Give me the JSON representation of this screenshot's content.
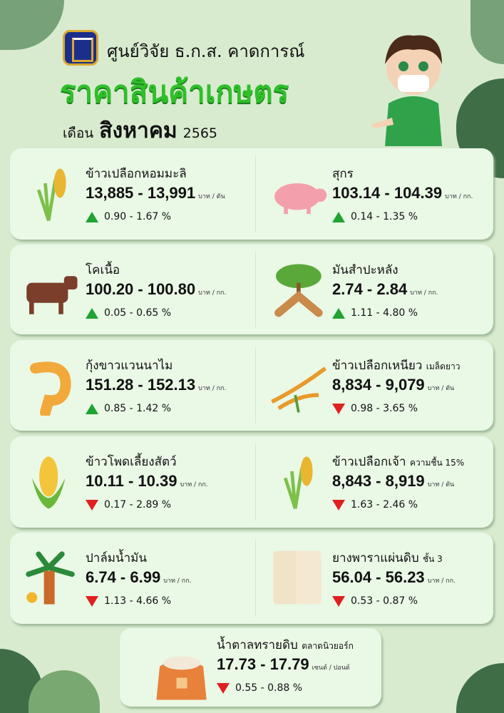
{
  "header": {
    "org": "ศูนย์วิจัย ธ.ก.ส. คาดการณ์",
    "title": "ราคาสินค้าเกษตร",
    "month_label": "เดือน",
    "month": "สิงหาคม",
    "year": "2565"
  },
  "colors": {
    "up": "#1fa332",
    "down": "#e02020",
    "title": "#2fbf2a",
    "background": "#d8ebcf",
    "card": "#eaf8e6"
  },
  "items": [
    {
      "name": "ข้าวเปลือกหอมมะลิ",
      "note": "",
      "price": "13,885 - 13,991",
      "unit": "บาท / ตัน",
      "change": "0.90 - 1.67 %",
      "direction": "up",
      "icon": "rice-plant-icon"
    },
    {
      "name": "สุกร",
      "note": "",
      "price": "103.14 - 104.39",
      "unit": "บาท / กก.",
      "change": "0.14 - 1.35 %",
      "direction": "up",
      "icon": "pig-icon"
    },
    {
      "name": "โคเนื้อ",
      "note": "",
      "price": "100.20 - 100.80",
      "unit": "บาท / กก.",
      "change": "0.05 - 0.65 %",
      "direction": "up",
      "icon": "cow-icon"
    },
    {
      "name": "มันสำปะหลัง",
      "note": "",
      "price": "2.74 - 2.84",
      "unit": "บาท / กก.",
      "change": "1.11 - 4.80 %",
      "direction": "up",
      "icon": "cassava-icon"
    },
    {
      "name": "กุ้งขาวแวนนาไม",
      "note": "",
      "price": "151.28 - 152.13",
      "unit": "บาท / กก.",
      "change": "0.85 - 1.42 %",
      "direction": "up",
      "icon": "shrimp-icon"
    },
    {
      "name": "ข้าวเปลือกเหนียว",
      "note": "เมล็ดยาว",
      "price": "8,834 - 9,079",
      "unit": "บาท / ตัน",
      "change": "0.98 - 3.65 %",
      "direction": "down",
      "icon": "rice-grain-icon"
    },
    {
      "name": "ข้าวโพดเลี้ยงสัตว์",
      "note": "",
      "price": "10.11 - 10.39",
      "unit": "บาท / กก.",
      "change": "0.17 - 2.89 %",
      "direction": "down",
      "icon": "corn-icon"
    },
    {
      "name": "ข้าวเปลือกเจ้า",
      "note": "ความชื้น 15%",
      "price": "8,843 - 8,919",
      "unit": "บาท / ตัน",
      "change": "1.63 - 2.46 %",
      "direction": "down",
      "icon": "rice-plant-icon"
    },
    {
      "name": "ปาล์มน้ำมัน",
      "note": "",
      "price": "6.74 - 6.99",
      "unit": "บาท / กก.",
      "change": "1.13 - 4.66 %",
      "direction": "down",
      "icon": "palm-icon"
    },
    {
      "name": "ยางพาราแผ่นดิบ",
      "note": "ชั้น 3",
      "price": "56.04 - 56.23",
      "unit": "บาท / กก.",
      "change": "0.53 - 0.87 %",
      "direction": "down",
      "icon": "rubber-sheet-icon"
    },
    {
      "name": "น้ำตาลทรายดิบ",
      "note": "ตลาดนิวยอร์ก",
      "price": "17.73 - 17.79",
      "unit": "เซนต์ / ปอนด์",
      "change": "0.55 - 0.88 %",
      "direction": "down",
      "icon": "sugar-sack-icon"
    }
  ]
}
